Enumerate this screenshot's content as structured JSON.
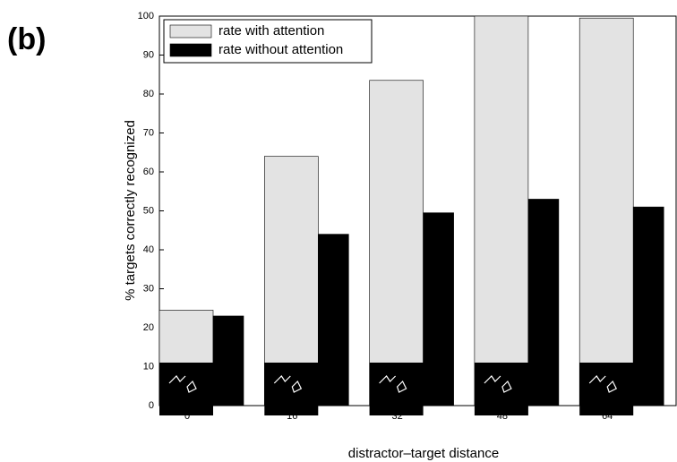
{
  "panel_label": "(b)",
  "chart_data": {
    "type": "bar",
    "xlabel": "distractor–target distance",
    "ylabel": "% targets correctly recognized",
    "categories": [
      "0",
      "16",
      "32",
      "48",
      "64"
    ],
    "series": [
      {
        "name": "rate with attention",
        "color": "#e3e3e3",
        "values": [
          24.5,
          64,
          83.5,
          100,
          99.5
        ]
      },
      {
        "name": "rate without attention",
        "color": "#000000",
        "values": [
          23,
          44,
          49.5,
          53,
          51
        ]
      }
    ],
    "ylim": [
      0,
      100
    ],
    "yticks": [
      0,
      10,
      20,
      30,
      40,
      50,
      60,
      70,
      80,
      90,
      100
    ],
    "legend": "upper left"
  }
}
